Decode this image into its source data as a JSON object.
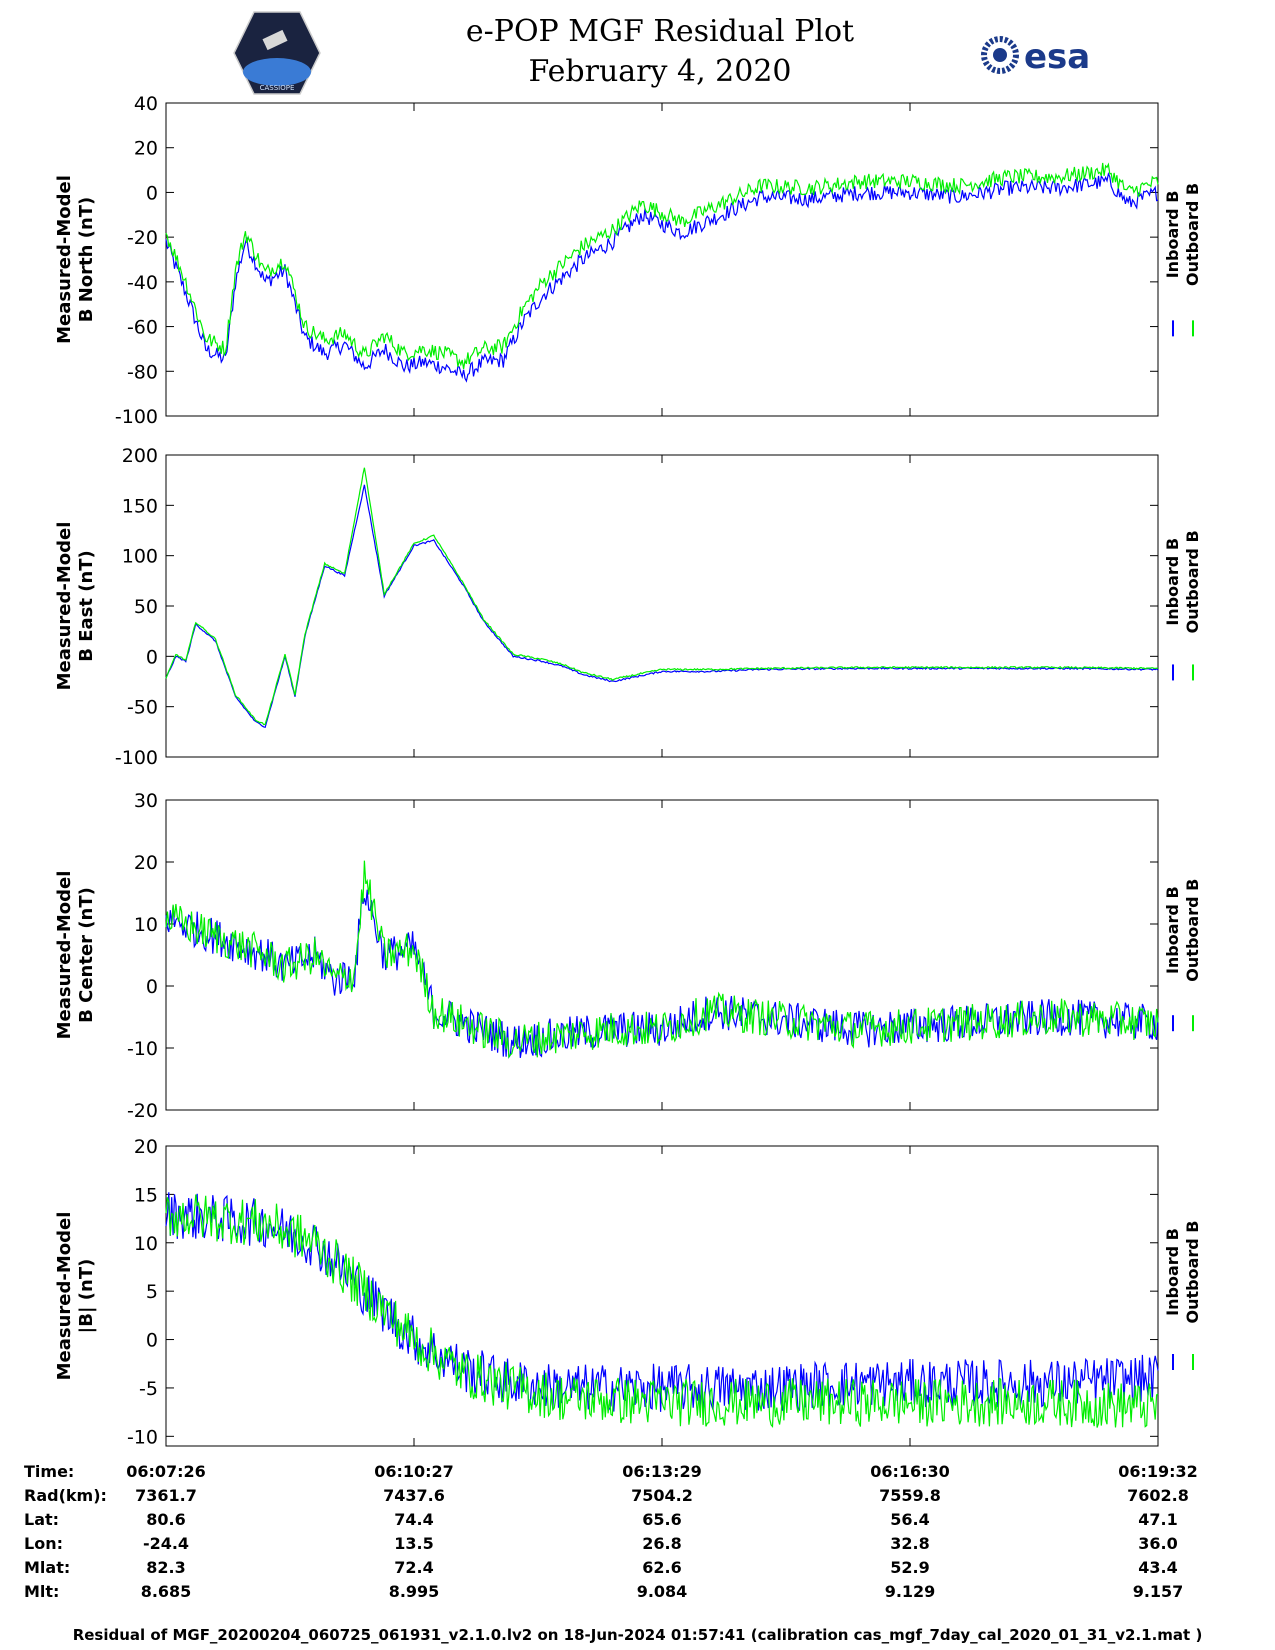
{
  "header": {
    "title_line1": "e-POP MGF Residual Plot",
    "title_line2": "February 4, 2020",
    "left_logo_text": "CASSIOPE",
    "right_logo_text": "esa"
  },
  "chart_data": [
    {
      "type": "line",
      "ylabel_line1": "Measured-Model",
      "ylabel_line2": "B North (nT)",
      "ylim": [
        -100,
        40
      ],
      "yticks": [
        -100,
        -80,
        -60,
        -40,
        -20,
        0,
        20,
        40
      ],
      "ytick_labels": [
        "-100",
        "-80",
        "-60",
        "-40",
        "-20",
        "0",
        "20",
        "40"
      ],
      "legend": [
        "Inboard B",
        "Outboard B"
      ],
      "series": [
        {
          "name": "Inboard B",
          "color": "#0000ff",
          "x": [
            0,
            0.02,
            0.04,
            0.06,
            0.07,
            0.08,
            0.1,
            0.12,
            0.14,
            0.16,
            0.18,
            0.2,
            0.22,
            0.24,
            0.26,
            0.28,
            0.3,
            0.32,
            0.34,
            0.36,
            0.38,
            0.4,
            0.42,
            0.45,
            0.48,
            0.52,
            0.56,
            0.6,
            0.65,
            0.7,
            0.75,
            0.8,
            0.85,
            0.9,
            0.95,
            0.97,
            1.0
          ],
          "values": [
            -22,
            -45,
            -70,
            -75,
            -40,
            -22,
            -40,
            -35,
            -65,
            -72,
            -68,
            -78,
            -70,
            -78,
            -76,
            -78,
            -82,
            -76,
            -75,
            -58,
            -46,
            -38,
            -30,
            -22,
            -10,
            -18,
            -10,
            -2,
            -3,
            0,
            0,
            -2,
            2,
            2,
            5,
            -5,
            0
          ]
        },
        {
          "name": "Outboard B",
          "color": "#00ee00",
          "x": [
            0,
            0.02,
            0.04,
            0.06,
            0.07,
            0.08,
            0.1,
            0.12,
            0.14,
            0.16,
            0.18,
            0.2,
            0.22,
            0.24,
            0.26,
            0.28,
            0.3,
            0.32,
            0.34,
            0.36,
            0.38,
            0.4,
            0.42,
            0.45,
            0.48,
            0.52,
            0.56,
            0.6,
            0.65,
            0.7,
            0.75,
            0.8,
            0.85,
            0.9,
            0.95,
            0.97,
            1.0
          ],
          "values": [
            -18,
            -40,
            -65,
            -70,
            -35,
            -18,
            -36,
            -30,
            -60,
            -66,
            -63,
            -73,
            -64,
            -72,
            -70,
            -72,
            -76,
            -70,
            -69,
            -52,
            -40,
            -32,
            -24,
            -17,
            -5,
            -13,
            -5,
            3,
            2,
            5,
            5,
            3,
            7,
            7,
            10,
            0,
            5
          ]
        }
      ]
    },
    {
      "type": "line",
      "ylabel_line1": "Measured-Model",
      "ylabel_line2": "B East (nT)",
      "ylim": [
        -100,
        200
      ],
      "yticks": [
        -100,
        -50,
        0,
        50,
        100,
        150,
        200
      ],
      "ytick_labels": [
        "-100",
        "-50",
        "0",
        "50",
        "100",
        "150",
        "200"
      ],
      "legend": [
        "Inboard B",
        "Outboard B"
      ],
      "series": [
        {
          "name": "Inboard B",
          "color": "#0000ff",
          "x": [
            0,
            0.01,
            0.02,
            0.03,
            0.05,
            0.07,
            0.09,
            0.1,
            0.12,
            0.13,
            0.14,
            0.16,
            0.18,
            0.2,
            0.22,
            0.25,
            0.27,
            0.3,
            0.32,
            0.35,
            0.38,
            0.4,
            0.42,
            0.45,
            0.5,
            0.55,
            0.6,
            0.7,
            0.8,
            0.9,
            1.0
          ],
          "values": [
            -22,
            0,
            -5,
            32,
            15,
            -40,
            -65,
            -70,
            0,
            -40,
            20,
            90,
            80,
            170,
            60,
            110,
            115,
            70,
            35,
            0,
            -5,
            -10,
            -18,
            -25,
            -15,
            -15,
            -13,
            -12,
            -12,
            -12,
            -13
          ]
        },
        {
          "name": "Outboard B",
          "color": "#00ee00",
          "x": [
            0,
            0.01,
            0.02,
            0.03,
            0.05,
            0.07,
            0.09,
            0.1,
            0.12,
            0.13,
            0.14,
            0.16,
            0.18,
            0.2,
            0.22,
            0.25,
            0.27,
            0.3,
            0.32,
            0.35,
            0.38,
            0.4,
            0.42,
            0.45,
            0.5,
            0.55,
            0.6,
            0.7,
            0.8,
            0.9,
            1.0
          ],
          "values": [
            -22,
            2,
            -4,
            34,
            17,
            -38,
            -63,
            -68,
            2,
            -38,
            22,
            92,
            82,
            188,
            62,
            112,
            120,
            72,
            37,
            2,
            -3,
            -8,
            -16,
            -23,
            -13,
            -13,
            -12,
            -11,
            -11,
            -11,
            -12
          ]
        }
      ]
    },
    {
      "type": "line",
      "ylabel_line1": "Measured-Model",
      "ylabel_line2": "B Center (nT)",
      "ylim": [
        -20,
        30
      ],
      "yticks": [
        -20,
        -10,
        0,
        10,
        20,
        30
      ],
      "ytick_labels": [
        "-20",
        "-10",
        "0",
        "10",
        "20",
        "30"
      ],
      "legend": [
        "Inboard B",
        "Outboard B"
      ],
      "series": [
        {
          "name": "Inboard B",
          "color": "#0000ff",
          "x": [
            0,
            0.05,
            0.1,
            0.12,
            0.15,
            0.17,
            0.19,
            0.2,
            0.22,
            0.25,
            0.27,
            0.3,
            0.35,
            0.4,
            0.45,
            0.5,
            0.55,
            0.6,
            0.7,
            0.8,
            0.9,
            1.0
          ],
          "values": [
            11,
            8,
            5,
            3,
            5,
            1,
            2,
            16,
            5,
            6,
            -4,
            -6,
            -9,
            -8,
            -7,
            -7,
            -4,
            -5,
            -7,
            -6,
            -5,
            -6
          ]
        },
        {
          "name": "Outboard B",
          "color": "#00ee00",
          "x": [
            0,
            0.05,
            0.1,
            0.12,
            0.15,
            0.17,
            0.19,
            0.2,
            0.22,
            0.25,
            0.27,
            0.3,
            0.35,
            0.4,
            0.45,
            0.5,
            0.55,
            0.6,
            0.7,
            0.8,
            0.9,
            1.0
          ],
          "values": [
            11,
            8,
            5,
            3,
            5,
            1,
            2,
            18,
            5,
            6,
            -4,
            -6,
            -9,
            -8,
            -7,
            -7,
            -4,
            -5,
            -7,
            -6,
            -5,
            -6
          ]
        }
      ]
    },
    {
      "type": "line",
      "ylabel_line1": "Measured-Model",
      "ylabel_line2": "|B| (nT)",
      "ylim": [
        -11,
        20
      ],
      "yticks": [
        -10,
        -5,
        0,
        5,
        10,
        15,
        20
      ],
      "ytick_labels": [
        "-10",
        "-5",
        "0",
        "5",
        "10",
        "15",
        "20"
      ],
      "legend": [
        "Inboard B",
        "Outboard B"
      ],
      "series": [
        {
          "name": "Inboard B",
          "color": "#0000ff",
          "x": [
            0,
            0.05,
            0.1,
            0.15,
            0.2,
            0.25,
            0.3,
            0.35,
            0.4,
            0.5,
            0.6,
            0.7,
            0.8,
            0.9,
            1.0
          ],
          "values": [
            13,
            12.5,
            12,
            10,
            5,
            0,
            -3,
            -4.5,
            -5,
            -5,
            -5,
            -4.5,
            -4.5,
            -4.5,
            -4
          ]
        },
        {
          "name": "Outboard B",
          "color": "#00ee00",
          "x": [
            0,
            0.05,
            0.1,
            0.15,
            0.2,
            0.25,
            0.3,
            0.35,
            0.4,
            0.5,
            0.6,
            0.7,
            0.8,
            0.9,
            1.0
          ],
          "values": [
            13,
            12.5,
            12,
            10,
            5,
            0,
            -3.5,
            -5,
            -6,
            -6.5,
            -6.5,
            -6.5,
            -6.5,
            -6.5,
            -7
          ]
        }
      ]
    }
  ],
  "info_table": {
    "row_labels": [
      "Time:",
      "Rad(km):",
      "Lat:",
      "Lon:",
      "Mlat:",
      "Mlt:"
    ],
    "columns": [
      [
        "06:07:26",
        "7361.7",
        "80.6",
        "-24.4",
        "82.3",
        "8.685"
      ],
      [
        "06:10:27",
        "7437.6",
        "74.4",
        "13.5",
        "72.4",
        "8.995"
      ],
      [
        "06:13:29",
        "7504.2",
        "65.6",
        "26.8",
        "62.6",
        "9.084"
      ],
      [
        "06:16:30",
        "7559.8",
        "56.4",
        "32.8",
        "52.9",
        "9.129"
      ],
      [
        "06:19:32",
        "7602.8",
        "47.1",
        "36.0",
        "43.4",
        "9.157"
      ]
    ]
  },
  "footer": "Residual of MGF_20200204_060725_061931_v2.1.0.lv2 on 18-Jun-2024 01:57:41 (calibration cas_mgf_7day_cal_2020_01_31_v2.1.mat )"
}
